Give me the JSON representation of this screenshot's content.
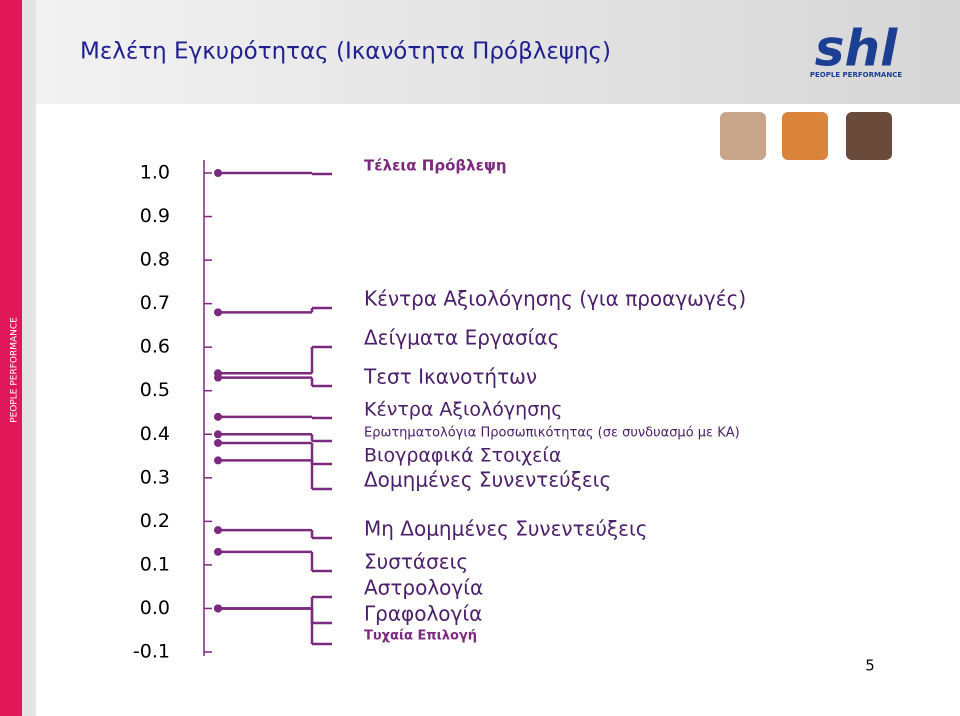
{
  "chart_data": {
    "type": "scale",
    "title": "Μελέτη Εγκυρότητας (Ικανότητα Πρόβλεψης)",
    "categories": [
      "Τέλεια Πρόβλεψη",
      "Κέντρα Αξιολόγησης (για προαγωγές)",
      "Δείγματα Εργασίας",
      "Τεστ Ικανοτήτων",
      "Κέντρα Αξιολόγησης",
      "Ερωτηματολόγια Προσωπικότητας (σε συνδυασμό με ΚΑ)",
      "Βιογραφικά Στοιχεία",
      "Δομημένες Συνεντεύξεις",
      "Μη Δομημένες Συνεντεύξεις",
      "Συστάσεις",
      "Αστρολογία",
      "Γραφολογία",
      "Τυχαία Επιλογή"
    ],
    "values": [
      1.0,
      0.68,
      0.54,
      0.53,
      0.44,
      0.4,
      0.38,
      0.34,
      0.18,
      0.13,
      0.0,
      0.0,
      0.0
    ],
    "color": "#7b2a7e",
    "ylim": [
      -0.1,
      1.0
    ],
    "yticks": [
      {
        "value": 1,
        "label": "1.0"
      },
      0.9,
      0.8,
      0.7,
      0.6,
      0.5,
      0.4,
      0.3,
      0.2,
      0.1,
      {
        "value": 0,
        "label": "0.0"
      },
      -0.1
    ]
  },
  "logo": "shl",
  "tagline": "PEOPLE PERFORMANCE",
  "side_text": "PEOPLE PERFORMANCE",
  "page_number": "5"
}
